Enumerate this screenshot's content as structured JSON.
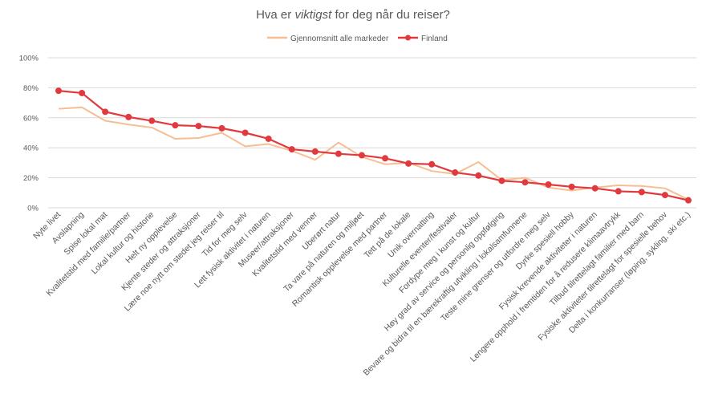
{
  "chart_data": {
    "type": "line",
    "title_parts": [
      "Hva er ",
      "viktigst",
      " for deg når du reiser?"
    ],
    "xlabel": "",
    "ylabel": "",
    "ylim": [
      0,
      100
    ],
    "yticks": [
      0,
      20,
      40,
      60,
      80,
      100
    ],
    "ytick_labels": [
      "0%",
      "20%",
      "40%",
      "60%",
      "80%",
      "100%"
    ],
    "grid": true,
    "legend_position": "top-center",
    "categories": [
      "Nyte livet",
      "Avslapning",
      "Spise lokal mat",
      "Kvalitetstid med familie/partner",
      "Lokal kultur og historie",
      "Helt ny opplevelse",
      "Kjente steder og attraksjoner",
      "Lære noe nytt om stedet jeg reiser til",
      "Tid for meg selv",
      "Lett fysisk aktivitet i naturen",
      "Museer/attraksjoner",
      "Kvalitetstid med venner",
      "Uberørt natur",
      "Ta vare på naturen og miljøet",
      "Romantisk opplevelse med partner",
      "Tett på de lokale",
      "Unik overnatting",
      "Kulturelle eventer/festivaler",
      "Fordype meg i kunst og kultur",
      "Høy grad av service og personlig oppfølging",
      "Bevare og bidra til en bærekraftig utvikling i lokalsamfunnene",
      "Teste mine grenser og utfordre meg selv",
      "Dyrke spesiell hobby",
      "Fysisk krevende aktiviteter i naturen",
      "Lengere opphold i fremtiden for å redusere klimaavtrykk",
      "Tilbud tilrettelagt familier med barn",
      "Fysiske aktiviteter tilrettelagt for spesielle behov",
      "Delta i konkurranser (løping, sykling, ski etc.)"
    ],
    "series": [
      {
        "name": "Gjennomsnitt alle markeder",
        "color": "#F7BE94",
        "markers": false,
        "values": [
          66,
          67,
          58,
          55.5,
          53.5,
          46,
          46.5,
          50,
          41,
          42.5,
          38,
          32,
          43.5,
          34,
          29,
          30,
          24.5,
          22.5,
          30.5,
          18.5,
          20,
          13.5,
          11.5,
          13.5,
          15,
          14.5,
          13,
          5.5
        ]
      },
      {
        "name": "Finland",
        "color": "#E0393E",
        "markers": true,
        "values": [
          78,
          76.5,
          64,
          60.5,
          58,
          55,
          54.5,
          53,
          50,
          46,
          39,
          37.5,
          36,
          35,
          33,
          29.5,
          29,
          23.5,
          21.5,
          18,
          17,
          15.5,
          14,
          13,
          11,
          10.5,
          8.5,
          5
        ]
      }
    ]
  }
}
